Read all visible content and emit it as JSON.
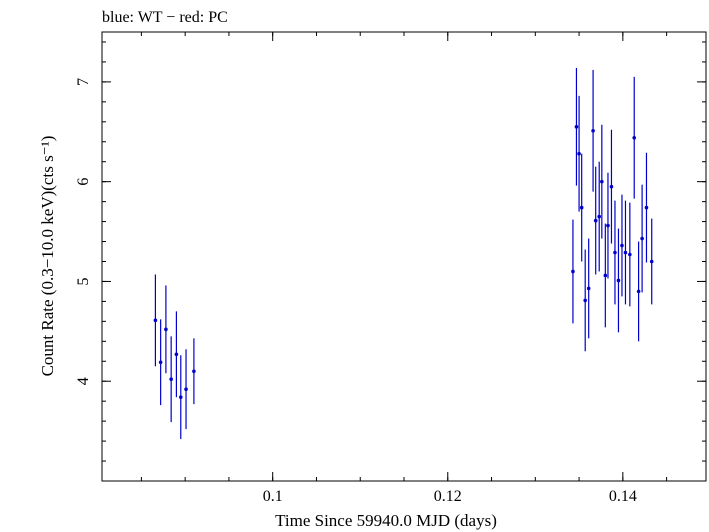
{
  "chart_data": {
    "type": "scatter",
    "title": "blue: WT − red: PC",
    "xlabel": "Time Since 59940.0 MJD (days)",
    "ylabel": "Count Rate (0.3−10.0 keV)(cts s⁻¹)",
    "xlim": [
      0.0805,
      0.1495
    ],
    "ylim": [
      3.0,
      7.5
    ],
    "xticks": [
      0.1,
      0.12,
      0.14
    ],
    "xtick_labels": [
      "0.1",
      "0.12",
      "0.14"
    ],
    "yticks": [
      4,
      5,
      6,
      7
    ],
    "ytick_labels": [
      "4",
      "5",
      "6",
      "7"
    ],
    "grid": false,
    "series": [
      {
        "color": "#0000cc",
        "points": [
          {
            "x": 0.0866,
            "y": 4.61,
            "err": 0.46
          },
          {
            "x": 0.0872,
            "y": 4.19,
            "err": 0.43
          },
          {
            "x": 0.0878,
            "y": 4.52,
            "err": 0.44
          },
          {
            "x": 0.0884,
            "y": 4.02,
            "err": 0.43
          },
          {
            "x": 0.089,
            "y": 4.27,
            "err": 0.43
          },
          {
            "x": 0.0895,
            "y": 3.84,
            "err": 0.42
          },
          {
            "x": 0.0901,
            "y": 3.92,
            "err": 0.4
          },
          {
            "x": 0.091,
            "y": 4.1,
            "err": 0.33
          },
          {
            "x": 0.1343,
            "y": 5.1,
            "err": 0.52
          },
          {
            "x": 0.1347,
            "y": 6.55,
            "err": 0.59
          },
          {
            "x": 0.135,
            "y": 6.28,
            "err": 0.58
          },
          {
            "x": 0.1353,
            "y": 5.74,
            "err": 0.54
          },
          {
            "x": 0.1357,
            "y": 4.81,
            "err": 0.51
          },
          {
            "x": 0.1361,
            "y": 4.93,
            "err": 0.5
          },
          {
            "x": 0.1366,
            "y": 6.51,
            "err": 0.61
          },
          {
            "x": 0.1369,
            "y": 5.61,
            "err": 0.54
          },
          {
            "x": 0.1373,
            "y": 5.65,
            "err": 0.55
          },
          {
            "x": 0.1376,
            "y": 6.0,
            "err": 0.57
          },
          {
            "x": 0.138,
            "y": 5.06,
            "err": 0.52
          },
          {
            "x": 0.1383,
            "y": 5.56,
            "err": 0.53
          },
          {
            "x": 0.1387,
            "y": 5.95,
            "err": 0.57
          },
          {
            "x": 0.1391,
            "y": 5.29,
            "err": 0.52
          },
          {
            "x": 0.1395,
            "y": 5.01,
            "err": 0.52
          },
          {
            "x": 0.1399,
            "y": 5.36,
            "err": 0.51
          },
          {
            "x": 0.1403,
            "y": 5.29,
            "err": 0.52
          },
          {
            "x": 0.1408,
            "y": 5.27,
            "err": 0.52
          },
          {
            "x": 0.1413,
            "y": 6.44,
            "err": 0.61
          },
          {
            "x": 0.1418,
            "y": 4.9,
            "err": 0.5
          },
          {
            "x": 0.1422,
            "y": 5.43,
            "err": 0.54
          },
          {
            "x": 0.1427,
            "y": 5.74,
            "err": 0.55
          },
          {
            "x": 0.1433,
            "y": 5.2,
            "err": 0.43
          }
        ]
      }
    ]
  }
}
